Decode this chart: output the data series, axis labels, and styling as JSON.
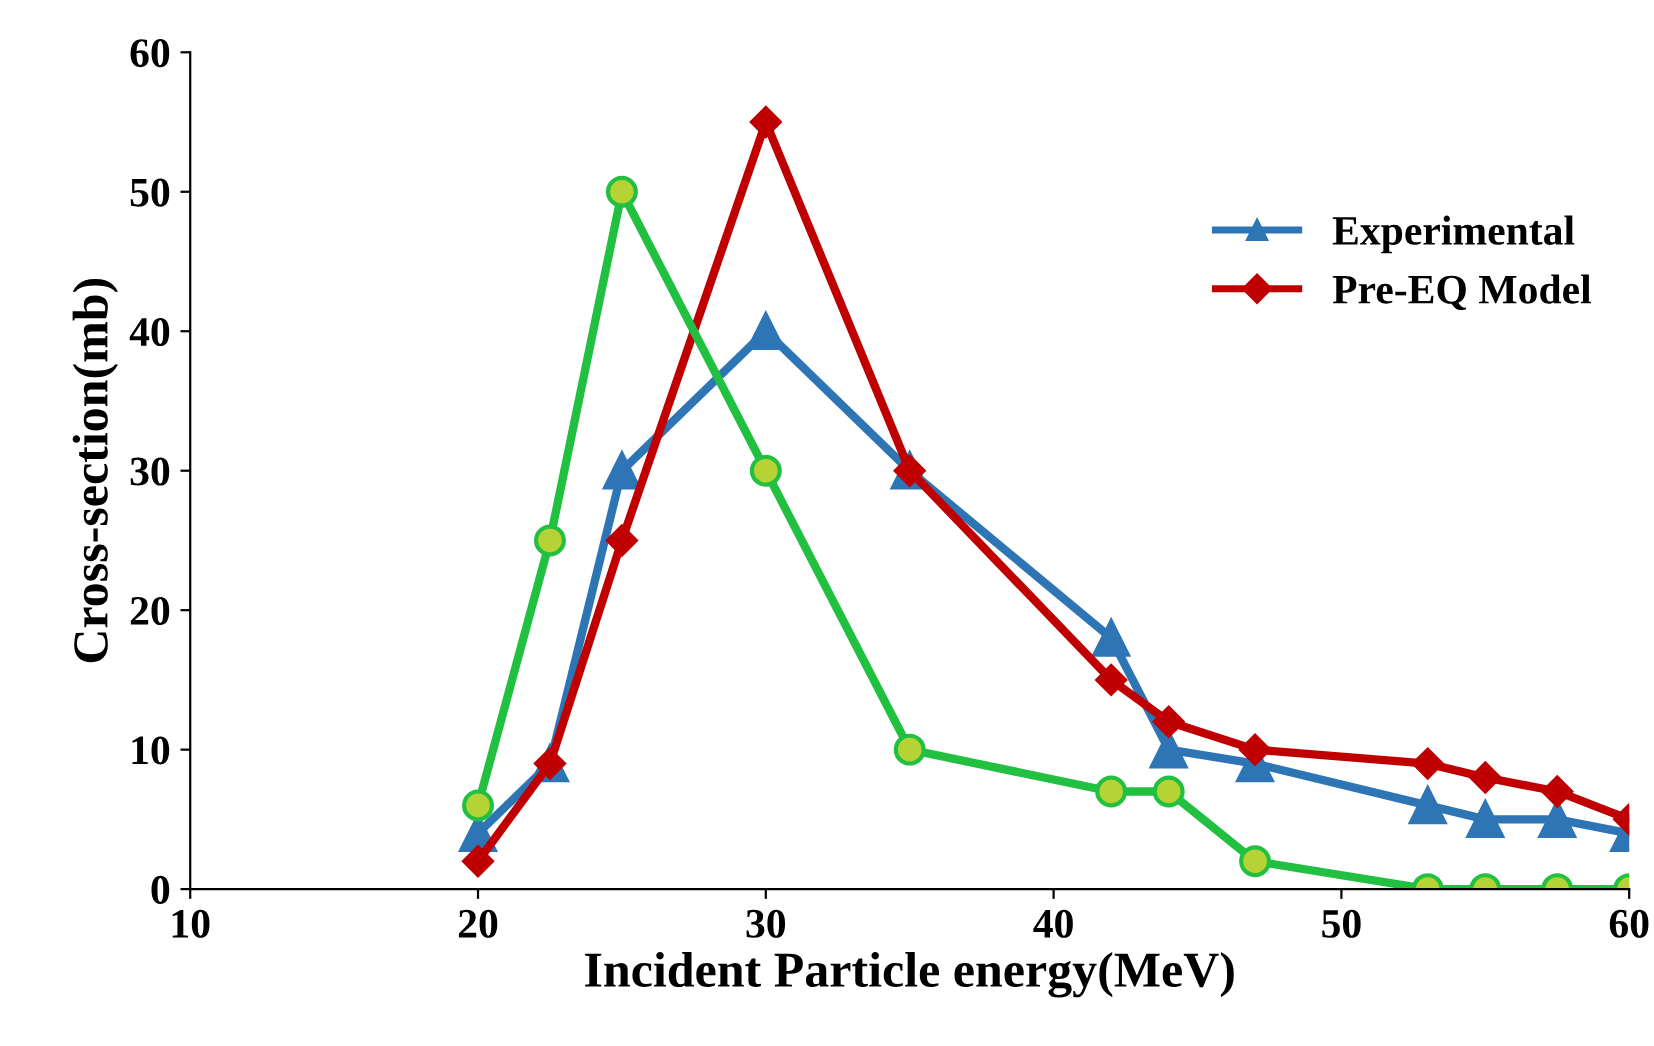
{
  "chart_data": {
    "type": "line",
    "xlabel": "Incident Particle energy(MeV)",
    "ylabel": "Cross-section(mb)",
    "x": [
      20,
      22.5,
      25,
      30,
      35,
      42,
      44,
      47,
      53,
      55,
      57.5,
      60
    ],
    "series": [
      {
        "name": "Experimental",
        "color": "#2e75b6",
        "marker": "triangle",
        "values": [
          4,
          9,
          30,
          40,
          30,
          18,
          10,
          9,
          6,
          5,
          5,
          4
        ]
      },
      {
        "name": "Pre-EQ Model",
        "color": "#c00000",
        "marker": "diamond",
        "values": [
          2,
          9,
          25,
          55,
          30,
          15,
          12,
          10,
          9,
          8,
          7,
          5
        ]
      },
      {
        "color": "#22c040",
        "marker": "circle",
        "values": [
          6,
          25,
          50,
          30,
          10,
          7,
          7,
          2,
          0,
          0,
          0,
          0
        ]
      }
    ],
    "xlim": [
      10,
      60
    ],
    "xticks": [
      10,
      20,
      30,
      40,
      50,
      60
    ],
    "ylim": [
      0,
      60
    ],
    "yticks": [
      0,
      10,
      20,
      30,
      40,
      50,
      60
    ],
    "grid": false,
    "legend": "top right"
  }
}
